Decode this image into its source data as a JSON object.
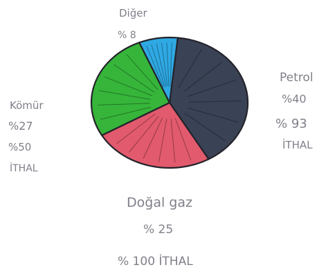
{
  "chart_data": {
    "type": "pie",
    "title": "",
    "legend": "none",
    "slices": [
      {
        "id": "petrol",
        "value": 40,
        "color": "#3a4255",
        "label_lines": [
          "Petrol",
          "%40",
          "% 93",
          "İTHAL"
        ]
      },
      {
        "id": "dogalgaz",
        "value": 25,
        "color": "#e25a6d",
        "label_lines": [
          "Doğal gaz",
          "% 25",
          "% 100 İTHAL"
        ]
      },
      {
        "id": "komur",
        "value": 27,
        "color": "#36b53a",
        "label_lines": [
          "Kömür",
          "%27",
          "%50",
          "İTHAL"
        ]
      },
      {
        "id": "diger",
        "value": 8,
        "color": "#2fa9e3",
        "label_lines": [
          "Diğer",
          "% 8"
        ]
      }
    ]
  }
}
